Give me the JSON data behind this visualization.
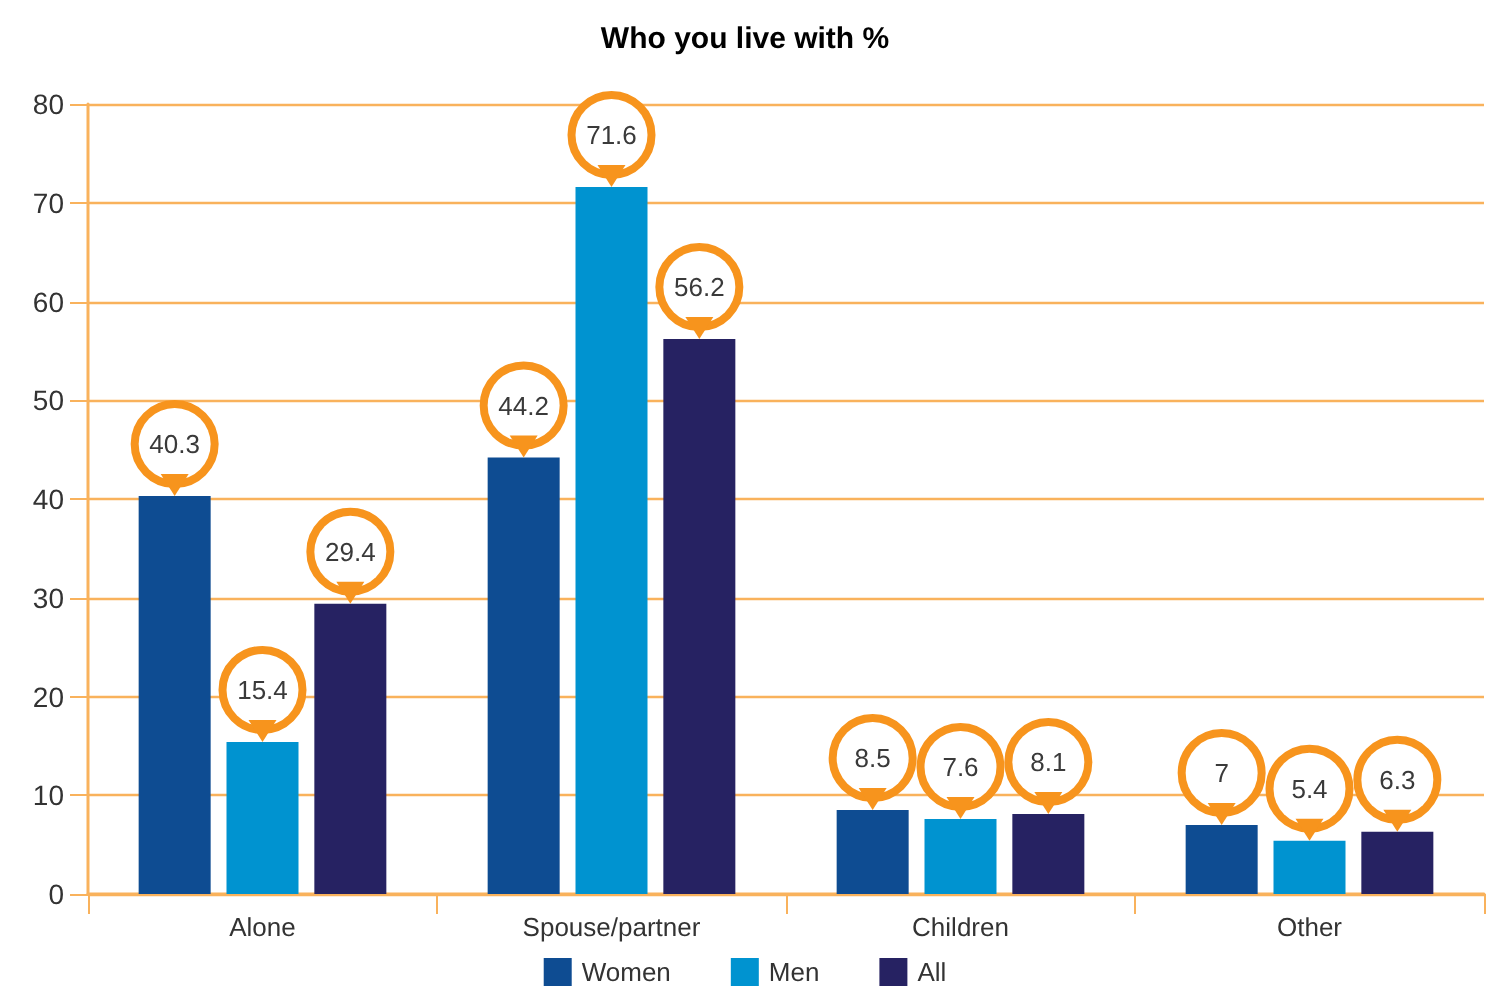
{
  "chart_data": {
    "type": "bar",
    "title": "Who you live with %",
    "categories": [
      "Alone",
      "Spouse/partner",
      "Children",
      "Other"
    ],
    "series": [
      {
        "name": "Women",
        "color": "#0e4c92",
        "values": [
          40.3,
          44.2,
          8.5,
          7
        ]
      },
      {
        "name": "Men",
        "color": "#0093d0",
        "values": [
          15.4,
          71.6,
          7.6,
          5.4
        ]
      },
      {
        "name": "All",
        "color": "#262262",
        "values": [
          29.4,
          56.2,
          8.1,
          6.3
        ]
      }
    ],
    "ylim": [
      0,
      80
    ],
    "yticks": [
      0,
      10,
      20,
      30,
      40,
      50,
      60,
      70,
      80
    ],
    "grid": "y",
    "legend": "bottom",
    "data_labels": true
  }
}
